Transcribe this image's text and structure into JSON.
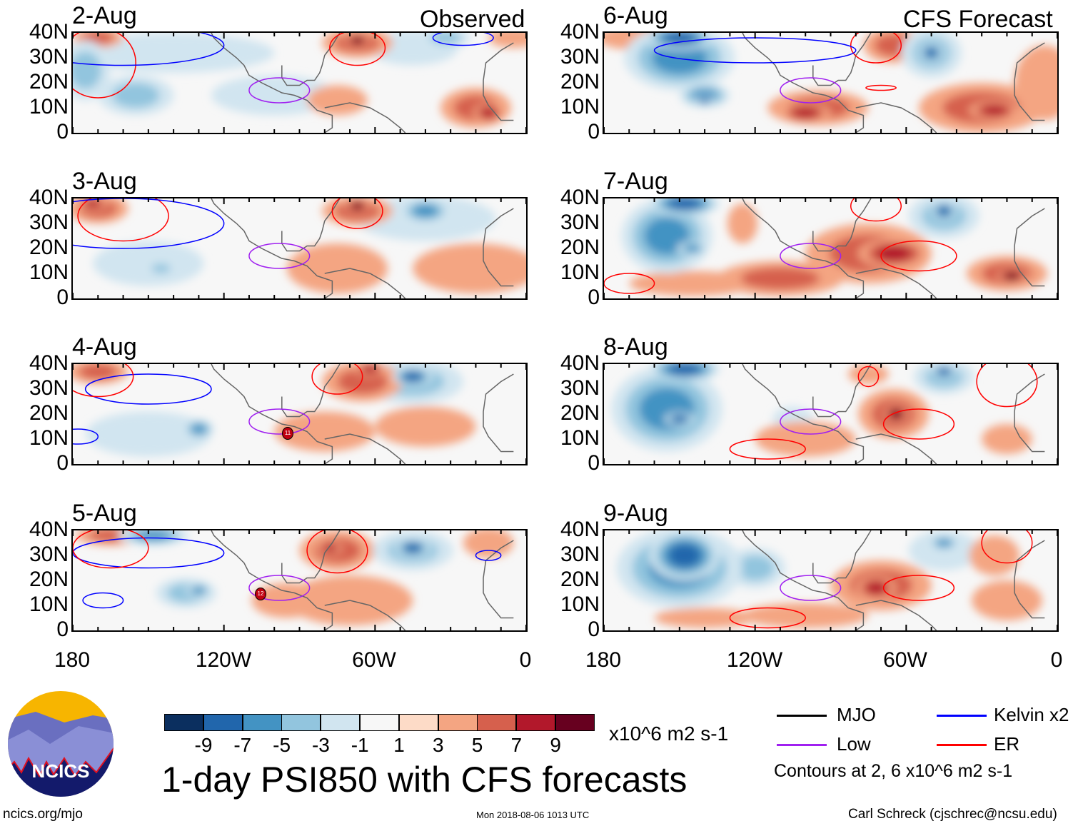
{
  "header": {
    "observed_label": "Observed",
    "forecast_label": "CFS Forecast"
  },
  "panels": {
    "left": [
      "2-Aug",
      "3-Aug",
      "4-Aug",
      "5-Aug"
    ],
    "right": [
      "6-Aug",
      "7-Aug",
      "8-Aug",
      "9-Aug"
    ]
  },
  "lat_ticks": [
    "40N",
    "30N",
    "20N",
    "10N",
    "0"
  ],
  "lon_ticks": [
    "180",
    "120W",
    "60W",
    "0"
  ],
  "storm_markers": [
    "11",
    "12"
  ],
  "colorbar": {
    "colors": [
      "#0b2f5f",
      "#2166ac",
      "#4393c3",
      "#92c5de",
      "#d1e5f0",
      "#f7f7f7",
      "#fddbc7",
      "#f4a582",
      "#d6604d",
      "#b2182b",
      "#67001f"
    ],
    "labels": [
      "-9",
      "-7",
      "-5",
      "-3",
      "-1",
      "1",
      "3",
      "5",
      "7",
      "9"
    ],
    "units": "x10^6 m2 s-1"
  },
  "title": "1-day PSI850 with CFS forecasts",
  "legend": {
    "items": [
      {
        "label": "MJO",
        "color": "#000000"
      },
      {
        "label": "Kelvin x2",
        "color": "#0000ff"
      },
      {
        "label": "Low",
        "color": "#a020f0"
      },
      {
        "label": "ER",
        "color": "#ff0000"
      }
    ],
    "contours_note": "Contours at 2, 6 x10^6 m2 s-1"
  },
  "logo": {
    "text": "NCICS"
  },
  "footer": {
    "url": "ncics.org/mjo",
    "timestamp": "Mon 2018-08-06 1013 UTC",
    "credit": "Carl Schreck (cjschrec@ncsu.edu)"
  }
}
